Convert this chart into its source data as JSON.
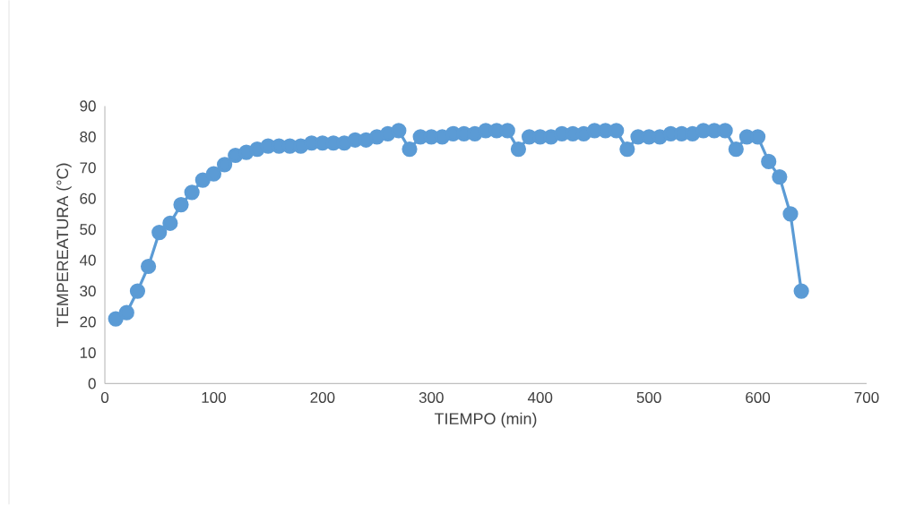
{
  "chart_data": {
    "type": "line",
    "xlabel": "TIEMPO (min)",
    "ylabel": "TEMPEREATURA (°C)",
    "x": [
      10,
      20,
      30,
      40,
      50,
      60,
      70,
      80,
      90,
      100,
      110,
      120,
      130,
      140,
      150,
      160,
      170,
      180,
      190,
      200,
      210,
      220,
      230,
      240,
      250,
      260,
      270,
      280,
      290,
      300,
      310,
      320,
      330,
      340,
      350,
      360,
      370,
      380,
      390,
      400,
      410,
      420,
      430,
      440,
      450,
      460,
      470,
      480,
      490,
      500,
      510,
      520,
      530,
      540,
      550,
      560,
      570,
      580,
      590,
      600,
      610,
      620,
      630,
      640
    ],
    "series": [
      {
        "color": "#5b9bd5",
        "values": [
          21,
          23,
          30,
          38,
          49,
          52,
          58,
          62,
          66,
          68,
          71,
          74,
          75,
          76,
          77,
          77,
          77,
          77,
          78,
          78,
          78,
          78,
          79,
          79,
          80,
          81,
          82,
          76,
          80,
          80,
          80,
          81,
          81,
          81,
          82,
          82,
          82,
          76,
          80,
          80,
          80,
          81,
          81,
          81,
          82,
          82,
          82,
          76,
          80,
          80,
          80,
          81,
          81,
          81,
          82,
          82,
          82,
          76,
          80,
          80,
          72,
          67,
          55,
          30
        ]
      }
    ],
    "xlim": [
      0,
      700
    ],
    "ylim": [
      0,
      90
    ],
    "xticks": [
      0,
      100,
      200,
      300,
      400,
      500,
      600,
      700
    ],
    "yticks": [
      0,
      10,
      20,
      30,
      40,
      50,
      60,
      70,
      80,
      90
    ],
    "grid": false,
    "marker": "circle",
    "line_style": "solid"
  }
}
